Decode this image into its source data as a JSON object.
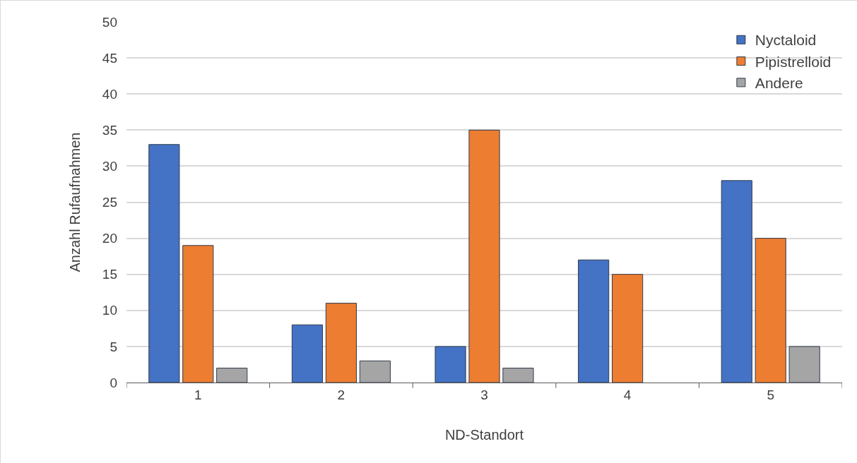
{
  "chart_data": {
    "type": "bar",
    "xlabel": "ND-Standort",
    "ylabel": "Anzahl Rufaufnahmen",
    "categories": [
      "1",
      "2",
      "3",
      "4",
      "5"
    ],
    "series": [
      {
        "name": "Nyctaloid",
        "color": "#4472c4",
        "values": [
          33,
          8,
          5,
          17,
          28
        ]
      },
      {
        "name": "Pipistrelloid",
        "color": "#ed7d31",
        "values": [
          19,
          11,
          35,
          15,
          20
        ]
      },
      {
        "name": "Andere",
        "color": "#a5a5a5",
        "values": [
          2,
          3,
          2,
          0,
          5
        ]
      }
    ],
    "ylim": [
      0,
      50
    ],
    "yticks": [
      0,
      5,
      10,
      15,
      20,
      25,
      30,
      35,
      40,
      45,
      50
    ],
    "grid": "y",
    "legend": "top right"
  }
}
